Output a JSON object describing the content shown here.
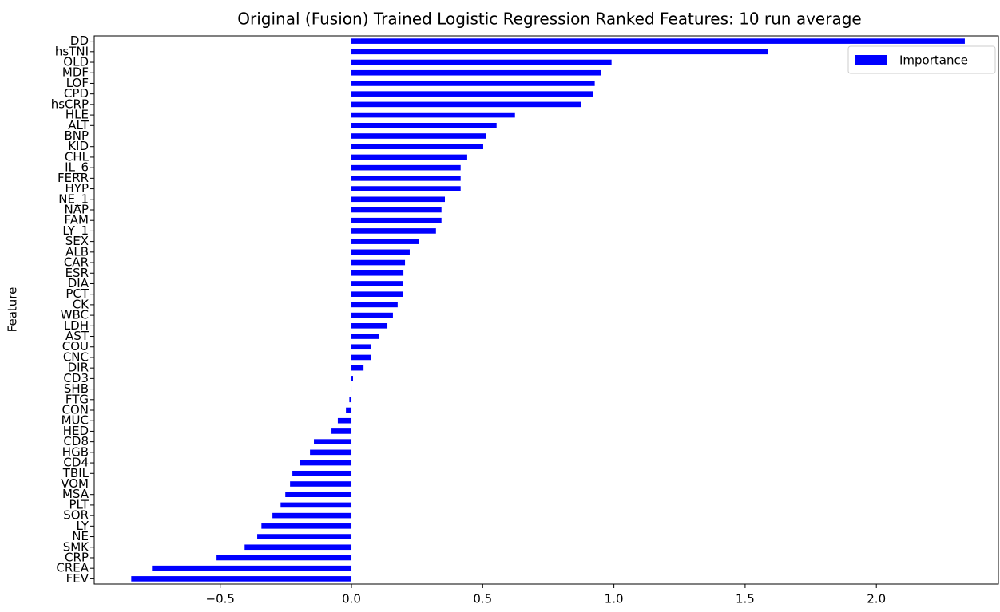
{
  "chart_data": {
    "type": "barh",
    "title": "Original (Fusion) Trained Logistic Regression Ranked Features: 10 run average",
    "y_label": "Feature",
    "categories": [
      "DD",
      "hsTNI",
      "OLD",
      "MDF",
      "LOF",
      "CPD",
      "hsCRP",
      "HLE",
      "ALT",
      "BNP",
      "KID",
      "CHL",
      "IL_6",
      "FERR",
      "HYP",
      "NE_1",
      "NAP",
      "FAM",
      "LY_1",
      "SEX",
      "ALB",
      "CAR",
      "ESR",
      "DIA",
      "PCT",
      "CK",
      "WBC",
      "LDH",
      "AST",
      "COU",
      "CNC",
      "DIR",
      "CD3",
      "SHB",
      "FTG",
      "CON",
      "MUC",
      "HED",
      "CD8",
      "HGB",
      "CD4",
      "TBIL",
      "VOM",
      "MSA",
      "PLT",
      "SOR",
      "LY",
      "NE",
      "SMK",
      "CRP",
      "CREA",
      "FEV"
    ],
    "series": [
      {
        "name": "Importance",
        "color": "#0000ff",
        "values": [
          2.337,
          1.587,
          0.991,
          0.951,
          0.927,
          0.921,
          0.875,
          0.623,
          0.553,
          0.514,
          0.502,
          0.441,
          0.416,
          0.416,
          0.416,
          0.356,
          0.343,
          0.343,
          0.322,
          0.258,
          0.222,
          0.204,
          0.198,
          0.195,
          0.195,
          0.176,
          0.158,
          0.137,
          0.106,
          0.073,
          0.073,
          0.046,
          0.006,
          -0.003,
          -0.008,
          -0.021,
          -0.052,
          -0.076,
          -0.143,
          -0.158,
          -0.195,
          -0.225,
          -0.234,
          -0.252,
          -0.27,
          -0.301,
          -0.343,
          -0.359,
          -0.407,
          -0.514,
          -0.76,
          -0.839
        ]
      }
    ],
    "xlim": [
      -0.98,
      2.465
    ],
    "xticks": [
      {
        "value": -0.5,
        "label": "−0.5"
      },
      {
        "value": 0,
        "label": "0.0"
      },
      {
        "value": 0.5,
        "label": "0.5"
      },
      {
        "value": 1,
        "label": "1.0"
      },
      {
        "value": 1.5,
        "label": "1.5"
      },
      {
        "value": 2,
        "label": "2.0"
      }
    ],
    "legend": "upper right",
    "grid": false
  }
}
